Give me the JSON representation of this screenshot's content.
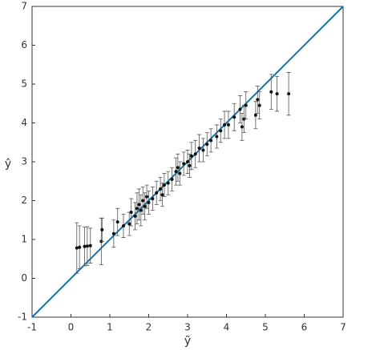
{
  "chart_data": {
    "type": "scatter",
    "xlabel": "ỹ",
    "ylabel": "ŷ",
    "x": [
      0.15,
      0.22,
      0.35,
      0.42,
      0.5,
      0.78,
      0.8,
      1.1,
      1.2,
      1.35,
      1.5,
      1.55,
      1.65,
      1.7,
      1.75,
      1.8,
      1.85,
      1.9,
      1.95,
      2.0,
      2.1,
      2.2,
      2.3,
      2.35,
      2.4,
      2.5,
      2.6,
      2.7,
      2.75,
      2.8,
      2.9,
      3.0,
      3.05,
      3.1,
      3.2,
      3.3,
      3.4,
      3.5,
      3.6,
      3.75,
      3.85,
      3.95,
      4.05,
      4.2,
      4.35,
      4.4,
      4.45,
      4.5,
      4.75,
      4.8,
      4.85,
      5.15,
      5.3,
      5.6
    ],
    "y": [
      0.78,
      0.8,
      0.82,
      0.83,
      0.84,
      0.95,
      1.25,
      1.15,
      1.45,
      1.35,
      1.4,
      1.7,
      1.6,
      1.8,
      1.9,
      1.75,
      2.0,
      1.85,
      2.1,
      1.95,
      2.05,
      2.2,
      2.3,
      2.15,
      2.4,
      2.45,
      2.55,
      2.75,
      2.85,
      2.7,
      2.95,
      3.0,
      2.9,
      3.15,
      3.2,
      3.35,
      3.3,
      3.45,
      3.55,
      3.65,
      3.8,
      3.95,
      3.95,
      4.15,
      4.35,
      3.9,
      4.1,
      4.45,
      4.2,
      4.6,
      4.45,
      4.8,
      4.75,
      4.75
    ],
    "error": [
      0.65,
      0.55,
      0.5,
      0.5,
      0.45,
      0.6,
      0.3,
      0.35,
      0.35,
      0.3,
      0.3,
      0.35,
      0.35,
      0.4,
      0.4,
      0.4,
      0.35,
      0.35,
      0.3,
      0.3,
      0.3,
      0.3,
      0.3,
      0.3,
      0.3,
      0.3,
      0.3,
      0.35,
      0.35,
      0.3,
      0.3,
      0.3,
      0.3,
      0.35,
      0.35,
      0.35,
      0.3,
      0.3,
      0.3,
      0.3,
      0.3,
      0.35,
      0.35,
      0.35,
      0.35,
      0.35,
      0.35,
      0.35,
      0.35,
      0.35,
      0.35,
      0.45,
      0.45,
      0.55
    ],
    "color": "#111111",
    "error_color": "#555555",
    "reference_line": {
      "x": [
        -1,
        7
      ],
      "y": [
        -1,
        7
      ],
      "color": "#1a6fa0"
    },
    "xlim": [
      -1,
      7
    ],
    "ylim": [
      -1,
      7
    ],
    "xticks": [
      -1,
      0,
      1,
      2,
      3,
      4,
      5,
      6,
      7
    ],
    "yticks": [
      -1,
      0,
      1,
      2,
      3,
      4,
      5,
      6,
      7
    ]
  }
}
